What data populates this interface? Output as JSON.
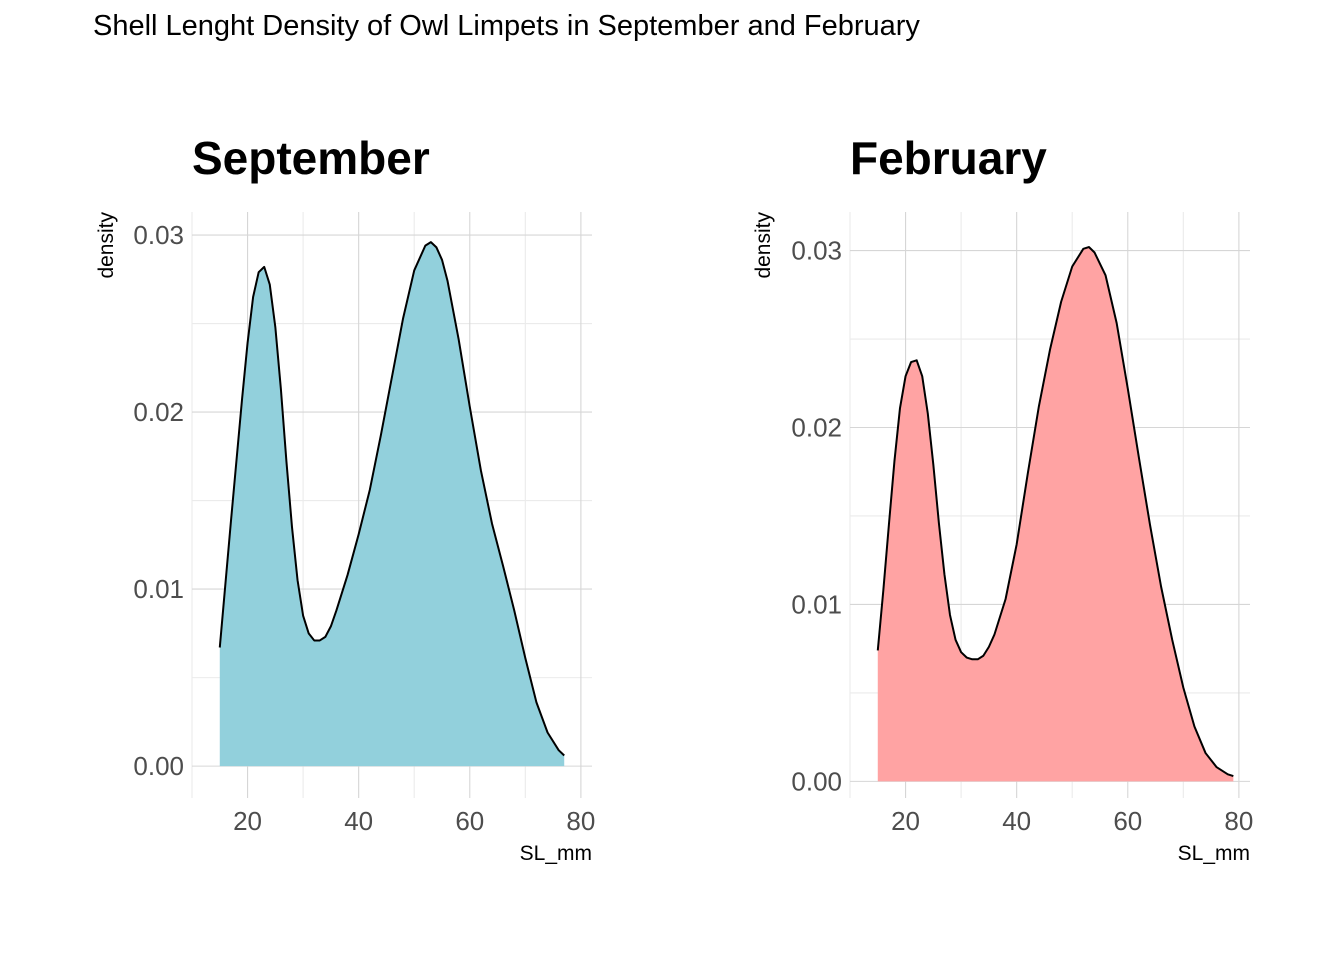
{
  "figure": {
    "title": "Shell Lenght Density of Owl Limpets in September and February"
  },
  "chart_data": [
    {
      "type": "area",
      "subtype": "density",
      "title": "September",
      "xlabel": "SL_mm",
      "ylabel": "density",
      "xlim": [
        10,
        82
      ],
      "ylim": [
        -0.0018,
        0.0313
      ],
      "x_ticks": [
        20,
        40,
        60,
        80
      ],
      "x_tick_labels": [
        "20",
        "40",
        "60",
        "80"
      ],
      "y_ticks": [
        0,
        0.01,
        0.02,
        0.03
      ],
      "y_tick_labels": [
        "0.00",
        "0.01",
        "0.02",
        "0.03"
      ],
      "grid": true,
      "fill_color": "#92d0dc",
      "line_color": "#000000",
      "x": [
        15,
        17,
        19,
        20,
        21,
        22,
        23,
        24,
        25,
        26,
        27,
        28,
        29,
        30,
        31,
        32,
        33,
        34,
        35,
        36,
        38,
        40,
        42,
        44,
        46,
        48,
        50,
        52,
        53,
        54,
        55,
        56,
        58,
        60,
        62,
        64,
        66,
        68,
        70,
        72,
        74,
        76,
        77
      ],
      "y": [
        0.0067,
        0.0138,
        0.0207,
        0.0239,
        0.0265,
        0.0279,
        0.0282,
        0.0272,
        0.0248,
        0.0213,
        0.0172,
        0.0135,
        0.0105,
        0.0085,
        0.0075,
        0.0071,
        0.0071,
        0.0073,
        0.0079,
        0.0088,
        0.0108,
        0.0131,
        0.0156,
        0.0187,
        0.022,
        0.0253,
        0.028,
        0.0294,
        0.0296,
        0.0293,
        0.0286,
        0.0274,
        0.0241,
        0.0203,
        0.0167,
        0.0137,
        0.0113,
        0.0088,
        0.0061,
        0.0036,
        0.0019,
        0.0009,
        0.0006
      ]
    },
    {
      "type": "area",
      "subtype": "density",
      "title": "February",
      "xlabel": "SL_mm",
      "ylabel": "density",
      "xlim": [
        10,
        82
      ],
      "ylim": [
        -0.00094,
        0.03218
      ],
      "x_ticks": [
        20,
        40,
        60,
        80
      ],
      "x_tick_labels": [
        "20",
        "40",
        "60",
        "80"
      ],
      "y_ticks": [
        0,
        0.01,
        0.02,
        0.03
      ],
      "y_tick_labels": [
        "0.00",
        "0.01",
        "0.02",
        "0.03"
      ],
      "grid": true,
      "fill_color": "#ffa3a3",
      "line_color": "#000000",
      "x": [
        15,
        16,
        17,
        18,
        19,
        20,
        21,
        22,
        23,
        24,
        25,
        26,
        27,
        28,
        29,
        30,
        31,
        32,
        33,
        34,
        35,
        36,
        38,
        40,
        42,
        44,
        46,
        48,
        50,
        52,
        53,
        54,
        56,
        58,
        60,
        62,
        64,
        66,
        68,
        70,
        72,
        74,
        76,
        78,
        79
      ],
      "y": [
        0.0074,
        0.0108,
        0.0145,
        0.0181,
        0.0211,
        0.0229,
        0.0237,
        0.0238,
        0.0229,
        0.0208,
        0.0179,
        0.0146,
        0.0117,
        0.0094,
        0.008,
        0.0073,
        0.007,
        0.0069,
        0.0069,
        0.0071,
        0.0076,
        0.0083,
        0.0103,
        0.0134,
        0.0174,
        0.0212,
        0.0244,
        0.0271,
        0.0291,
        0.0301,
        0.0302,
        0.0299,
        0.0286,
        0.0259,
        0.0222,
        0.0183,
        0.0145,
        0.011,
        0.008,
        0.0053,
        0.0031,
        0.0016,
        0.0008,
        0.0004,
        0.0003
      ]
    }
  ]
}
